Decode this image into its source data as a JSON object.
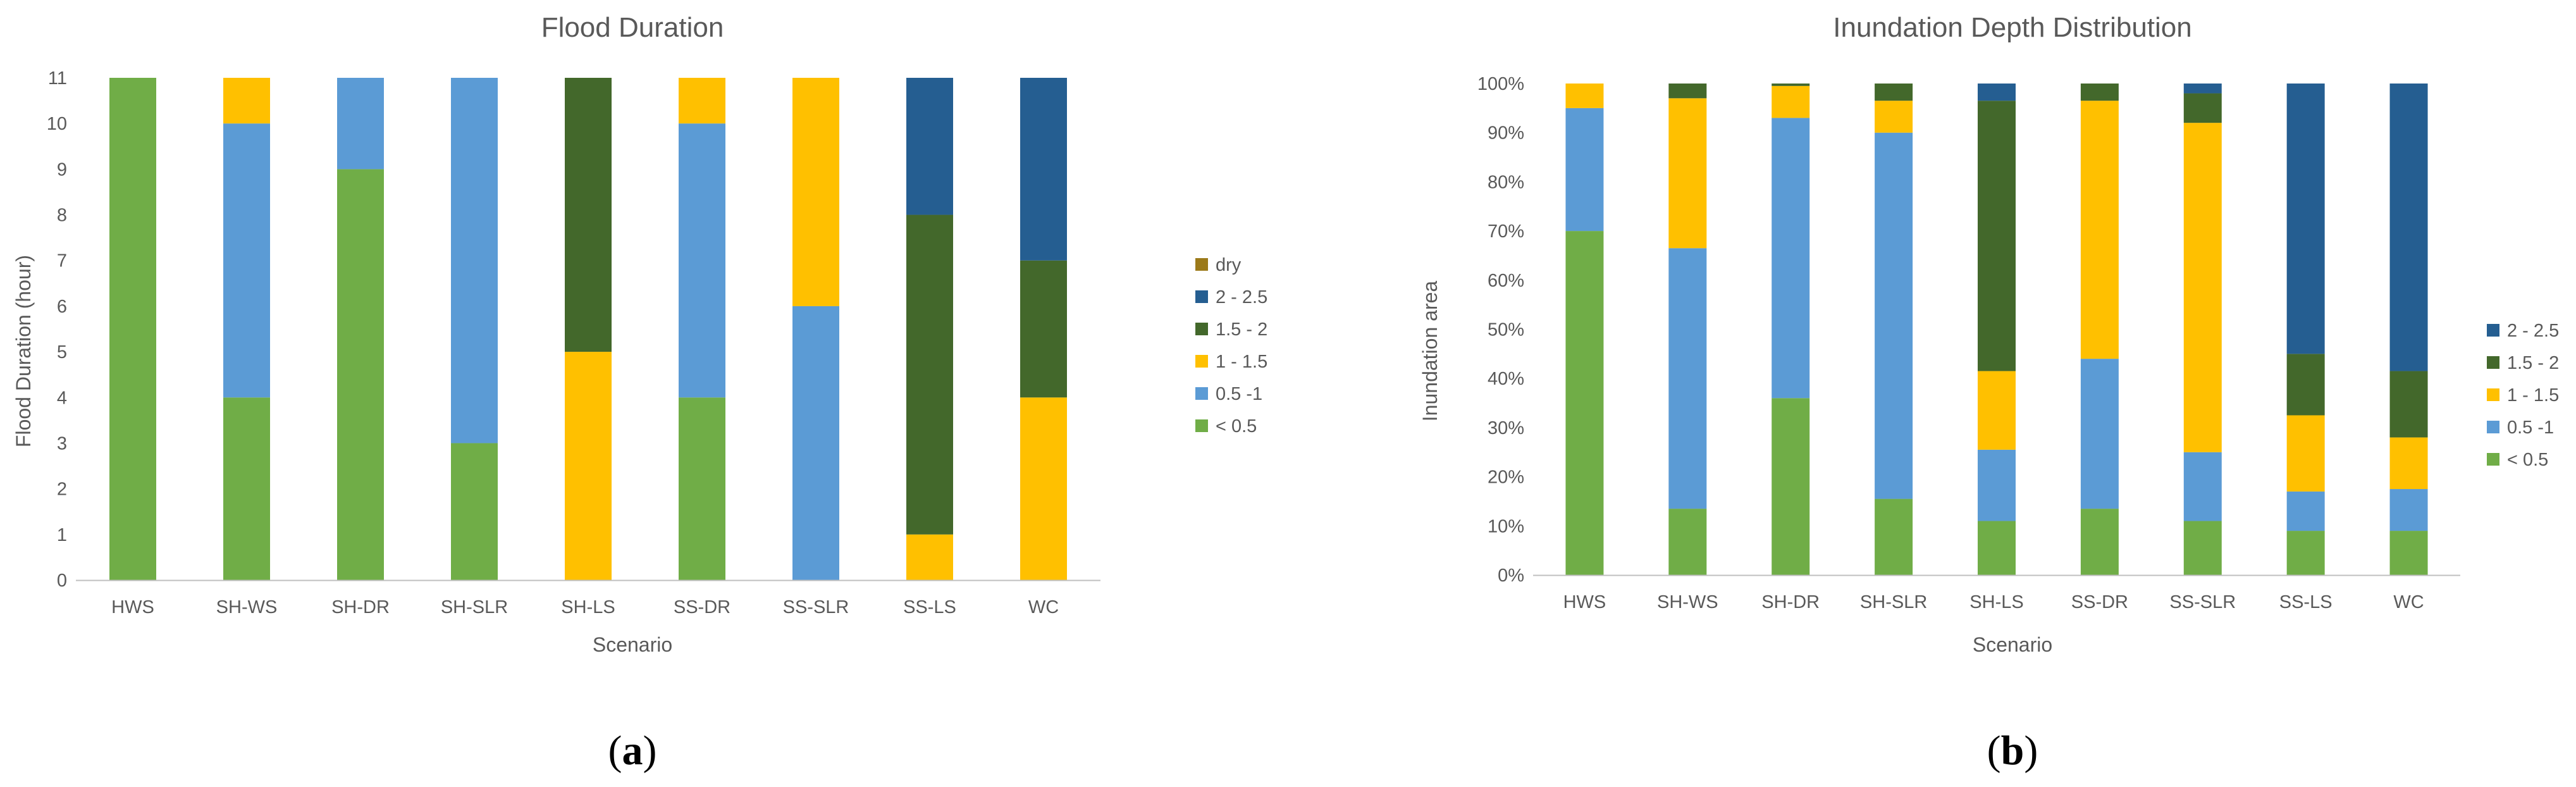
{
  "figure": {
    "captions": [
      {
        "open": "(",
        "letter": "a",
        "close": ")"
      },
      {
        "open": "(",
        "letter": "b",
        "close": ")"
      }
    ]
  },
  "colors": {
    "dry": "#9c7a1a",
    "2 - 2.5": "#255e91",
    "1.5 - 2": "#43682b",
    "1 - 1.5": "#ffc000",
    "0.5 -1": "#5b9bd5",
    "< 0.5": "#70ad47",
    "gridline": "#d9d9d9",
    "axisline": "#bfbfbf"
  },
  "chart_data": [
    {
      "type": "bar",
      "stacked": true,
      "title": "Flood Duration",
      "xlabel": "Scenario",
      "ylabel": "Flood Duration (hour)",
      "ylim": [
        0,
        11
      ],
      "yticks": [
        0,
        1,
        2,
        3,
        4,
        5,
        6,
        7,
        8,
        9,
        10,
        11
      ],
      "ytick_labels": [
        "0",
        "1",
        "2",
        "3",
        "4",
        "5",
        "6",
        "7",
        "8",
        "9",
        "10",
        "11"
      ],
      "grid": false,
      "legend_position": "right",
      "categories": [
        "HWS",
        "SH-WS",
        "SH-DR",
        "SH-SLR",
        "SH-LS",
        "SS-DR",
        "SS-SLR",
        "SS-LS",
        "WC"
      ],
      "legend": [
        "dry",
        "2 - 2.5",
        "1.5 - 2",
        "1 - 1.5",
        "0.5 -1",
        "< 0.5"
      ],
      "series": [
        {
          "name": "< 0.5",
          "values": [
            11,
            4,
            9,
            3,
            0,
            4,
            0,
            0,
            0
          ]
        },
        {
          "name": "0.5 -1",
          "values": [
            0,
            6,
            2,
            8,
            0,
            6,
            6,
            0,
            0
          ]
        },
        {
          "name": "1 - 1.5",
          "values": [
            0,
            1,
            0,
            0,
            5,
            1,
            5,
            1,
            4
          ]
        },
        {
          "name": "1.5 - 2",
          "values": [
            0,
            0,
            0,
            0,
            6,
            0,
            0,
            7,
            3
          ]
        },
        {
          "name": "2 - 2.5",
          "values": [
            0,
            0,
            0,
            0,
            0,
            0,
            0,
            3,
            4
          ]
        },
        {
          "name": "dry",
          "values": [
            0,
            0,
            0,
            0,
            0,
            0,
            0,
            0,
            0
          ]
        }
      ]
    },
    {
      "type": "bar",
      "stacked": true,
      "title": "Inundation Depth Distribution",
      "xlabel": "Scenario",
      "ylabel": "Inundation area",
      "ylim": [
        0,
        100
      ],
      "yticks": [
        0,
        10,
        20,
        30,
        40,
        50,
        60,
        70,
        80,
        90,
        100
      ],
      "ytick_labels": [
        "0%",
        "10%",
        "20%",
        "30%",
        "40%",
        "50%",
        "60%",
        "70%",
        "80%",
        "90%",
        "100%"
      ],
      "grid": false,
      "legend_position": "right",
      "categories": [
        "HWS",
        "SH-WS",
        "SH-DR",
        "SH-SLR",
        "SH-LS",
        "SS-DR",
        "SS-SLR",
        "SS-LS",
        "WC"
      ],
      "legend": [
        "2 - 2.5",
        "1.5 - 2",
        "1 - 1.5",
        "0.5 -1",
        "< 0.5"
      ],
      "series": [
        {
          "name": "< 0.5",
          "values": [
            70,
            13.5,
            36,
            15.5,
            11,
            13.5,
            11,
            9,
            9
          ]
        },
        {
          "name": "0.5 -1",
          "values": [
            25,
            53,
            57,
            74.5,
            14.5,
            30.5,
            14,
            8,
            8.5
          ]
        },
        {
          "name": "1 - 1.5",
          "values": [
            5,
            30.5,
            6.5,
            6.5,
            16,
            52.5,
            67,
            15.5,
            10.5
          ]
        },
        {
          "name": "1.5 - 2",
          "values": [
            0,
            3,
            0.5,
            3.5,
            55,
            3.5,
            6,
            12.5,
            13.5
          ]
        },
        {
          "name": "2 - 2.5",
          "values": [
            0,
            0,
            0,
            0,
            3.5,
            0,
            2,
            55,
            58.5
          ]
        }
      ]
    }
  ]
}
